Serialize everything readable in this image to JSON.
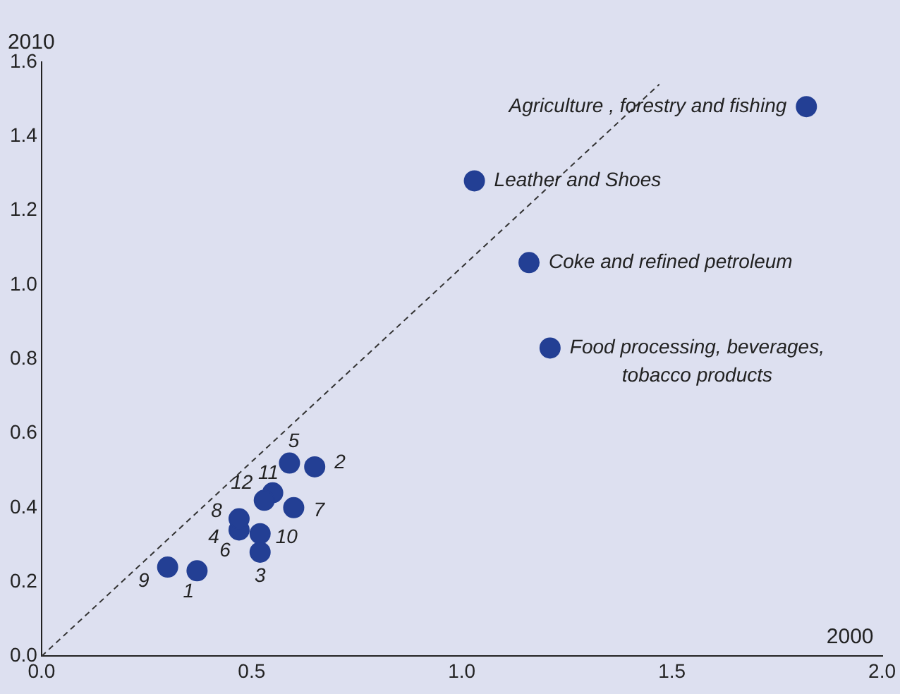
{
  "chart_data": {
    "type": "scatter",
    "xlabel": "2000",
    "ylabel": "2010",
    "xlim": [
      0,
      2
    ],
    "xticks": [
      {
        "value": 0,
        "label": "0.0"
      },
      {
        "value": 0.5,
        "label": "0.5"
      },
      {
        "value": 1,
        "label": "1.0"
      },
      {
        "value": 1.5,
        "label": "1.5"
      },
      {
        "value": 2,
        "label": "2.0"
      }
    ],
    "ylim": [
      0,
      1.6
    ],
    "yticks": [
      {
        "value": 0,
        "label": "0.0"
      },
      {
        "value": 0.2,
        "label": "0.2"
      },
      {
        "value": 0.4,
        "label": "0.4"
      },
      {
        "value": 0.6,
        "label": "0.6"
      },
      {
        "value": 0.8,
        "label": "0.8"
      },
      {
        "value": 1,
        "label": "1.0"
      },
      {
        "value": 1.2,
        "label": "1.2"
      },
      {
        "value": 1.4,
        "label": "1.4"
      },
      {
        "value": 1.6,
        "label": "1.6"
      }
    ],
    "grid": false,
    "legend": false,
    "series": [
      {
        "type": "scatter",
        "color": "#233f94",
        "marker": "circle",
        "x": [
          1.82,
          1.03,
          1.16,
          1.21,
          0.37,
          0.65,
          0.52,
          0.47,
          0.59,
          null,
          0.6,
          0.47,
          0.3,
          0.52,
          0.55,
          0.53
        ],
        "values": [
          1.48,
          1.28,
          1.06,
          0.83,
          0.23,
          0.51,
          0.28,
          0.34,
          0.52,
          null,
          0.4,
          0.37,
          0.24,
          0.33,
          0.44,
          0.42
        ]
      },
      {
        "type": "line",
        "color": "#333333",
        "marker": "none",
        "line_style": "dashed",
        "x": [
          0,
          1.47
        ],
        "values": [
          0,
          1.54
        ]
      }
    ],
    "annotations": [
      {
        "text": "Agriculture , forestry and fishing",
        "x": 1.82,
        "y": 1.48
      },
      {
        "text": "Leather and Shoes",
        "x": 1.03,
        "y": 1.28
      },
      {
        "text": "Coke and refined petroleum",
        "x": 1.16,
        "y": 1.06
      },
      {
        "text": "Food processing, beverages, tobacco products",
        "x": 1.21,
        "y": 0.83
      },
      {
        "text": "1",
        "x": 0.37,
        "y": 0.23
      },
      {
        "text": "2",
        "x": 0.65,
        "y": 0.51
      },
      {
        "text": "3",
        "x": 0.52,
        "y": 0.28
      },
      {
        "text": "4",
        "x": 0.47,
        "y": 0.35
      },
      {
        "text": "5",
        "x": 0.59,
        "y": 0.52
      },
      {
        "text": "6",
        "x": 0.47,
        "y": 0.34
      },
      {
        "text": "7",
        "x": 0.6,
        "y": 0.4
      },
      {
        "text": "8",
        "x": 0.47,
        "y": 0.37
      },
      {
        "text": "9",
        "x": 0.3,
        "y": 0.24
      },
      {
        "text": "10",
        "x": 0.52,
        "y": 0.33
      },
      {
        "text": "11",
        "x": 0.55,
        "y": 0.44
      },
      {
        "text": "12",
        "x": 0.53,
        "y": 0.42
      }
    ]
  }
}
